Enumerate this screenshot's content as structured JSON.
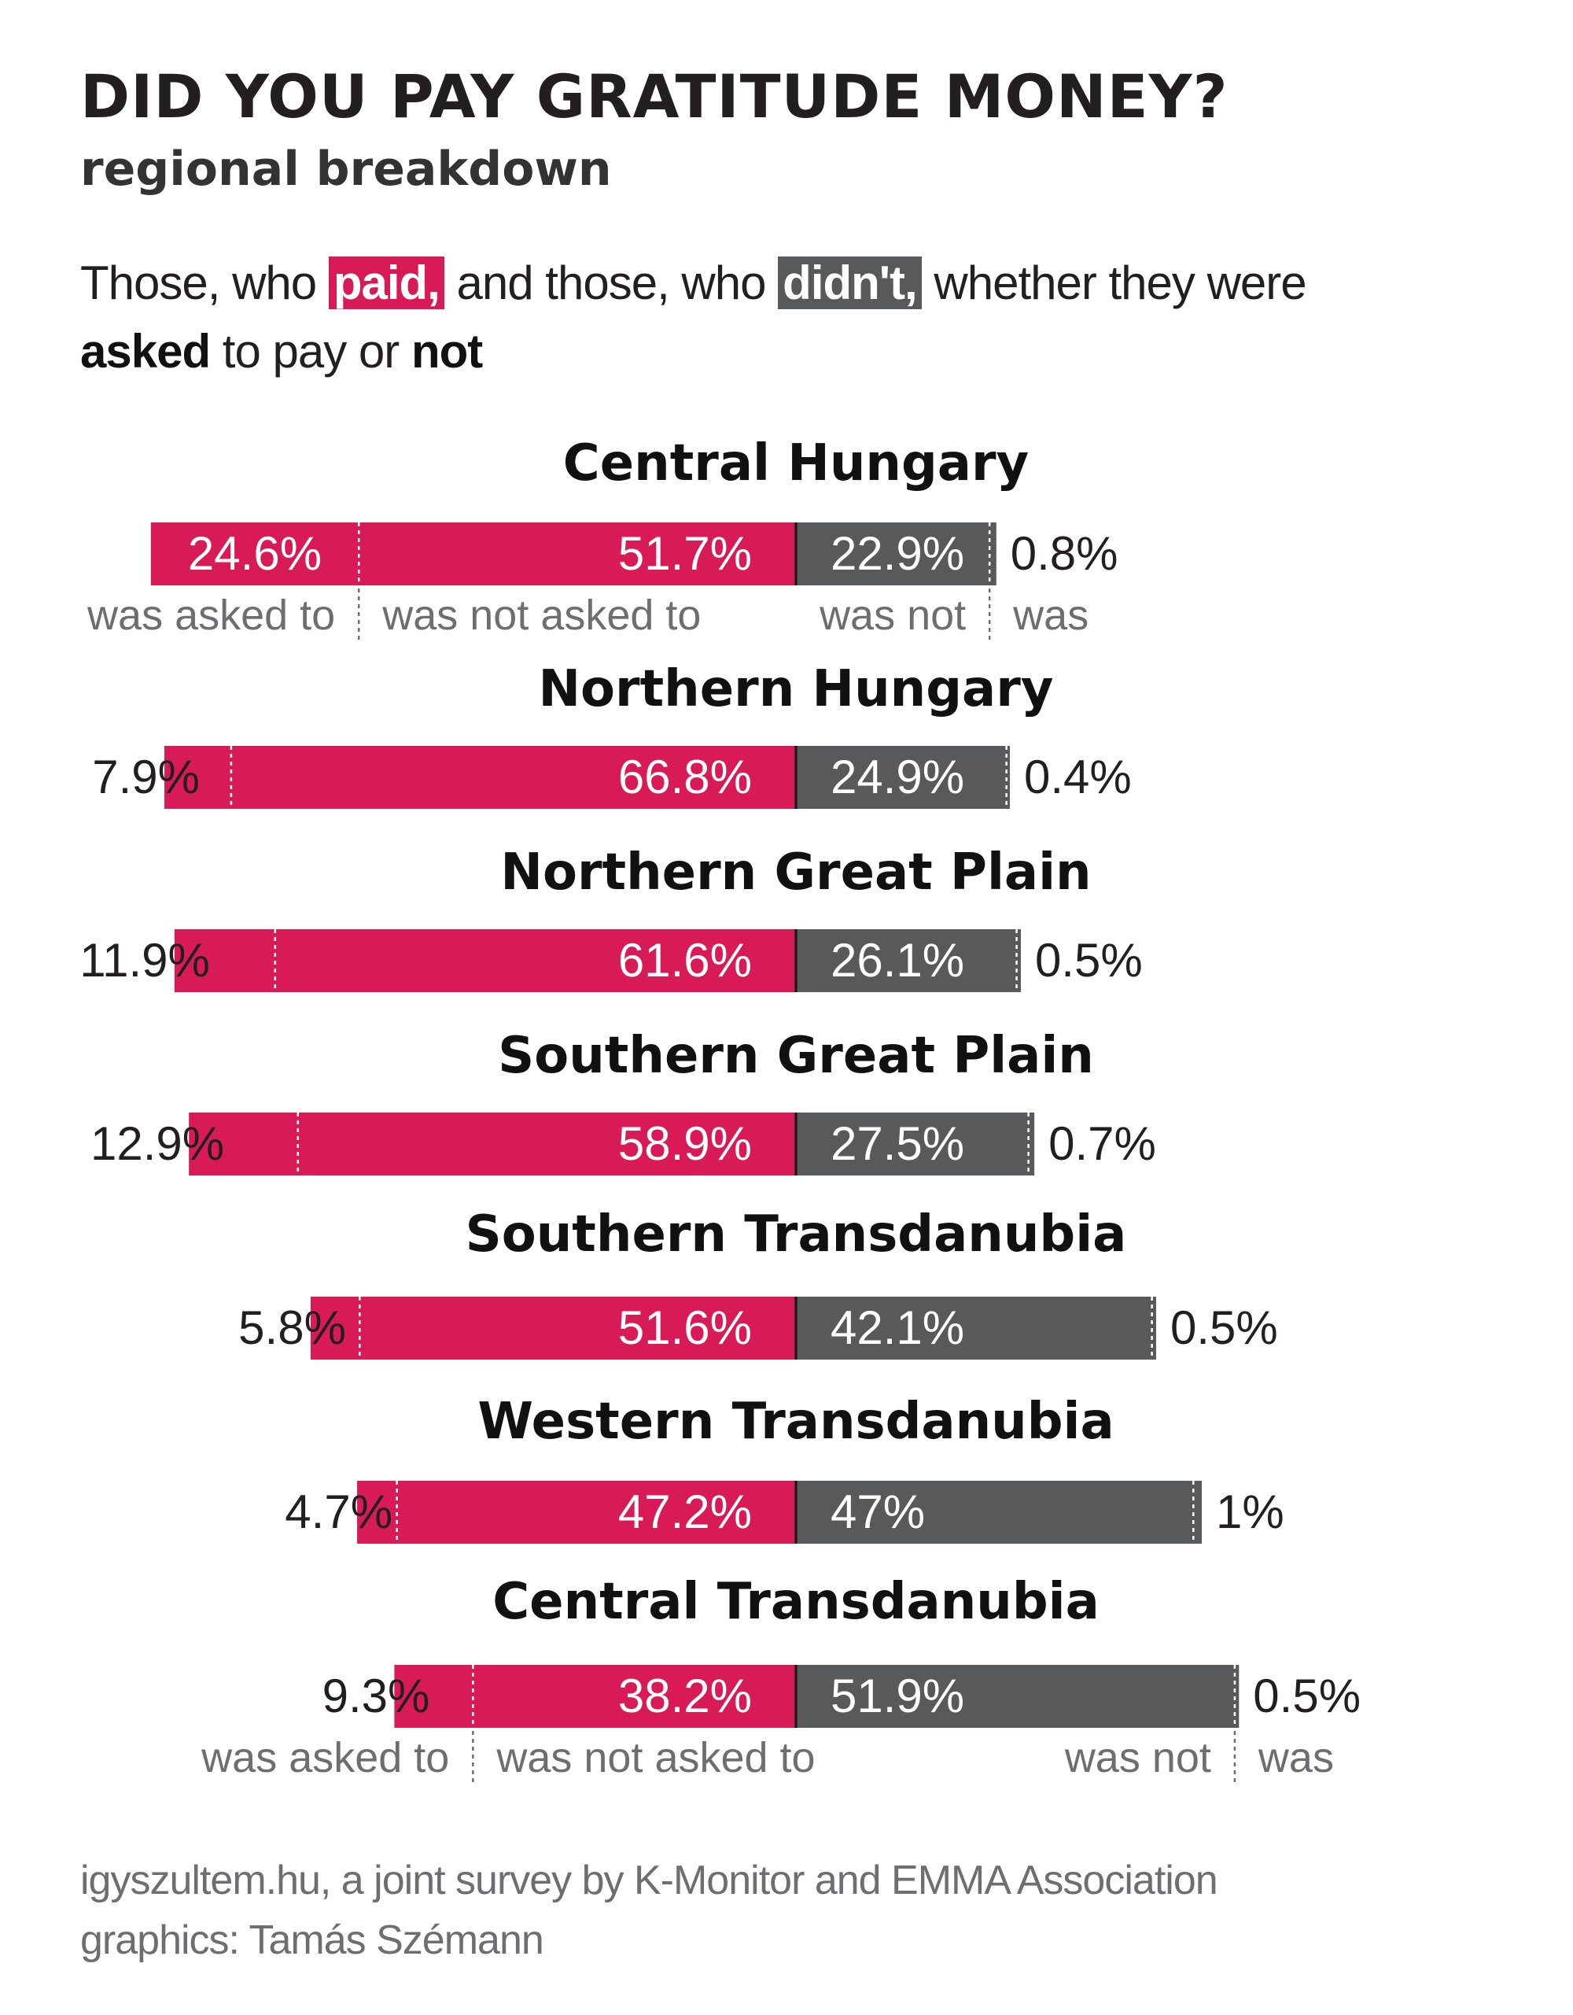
{
  "title": "DID YOU PAY GRATITUDE MONEY?",
  "subtitle": "regional breakdown",
  "intro": {
    "part1": "Those, who ",
    "paid": "paid,",
    "part2": " and those, who ",
    "didnt": "didn't,",
    "part3": " whether they were",
    "asked": "asked",
    "part4": " to pay or ",
    "not": "not"
  },
  "colors": {
    "paid": "#d81b56",
    "didnt": "#58595b",
    "text": "#231f20",
    "muted": "#6d6e71"
  },
  "chart_data": {
    "type": "bar",
    "orientation": "horizontal-stacked-diverging",
    "categories": [
      "Central Hungary",
      "Northern Hungary",
      "Northern Great Plain",
      "Southern Great Plain",
      "Southern Transdanubia",
      "Western Transdanubia",
      "Central Transdanubia"
    ],
    "series": [
      {
        "name": "paid — was asked to",
        "values": [
          24.6,
          7.9,
          11.9,
          12.9,
          5.8,
          4.7,
          9.3
        ],
        "labels": [
          "24.6%",
          "7.9%",
          "11.9%",
          "12.9%",
          "5.8%",
          "4.7%",
          "9.3%"
        ]
      },
      {
        "name": "paid — was not asked to",
        "values": [
          51.7,
          66.8,
          61.6,
          58.9,
          51.6,
          47.2,
          38.2
        ],
        "labels": [
          "51.7%",
          "66.8%",
          "61.6%",
          "58.9%",
          "51.6%",
          "47.2%",
          "38.2%"
        ]
      },
      {
        "name": "didn't — was not",
        "values": [
          22.9,
          24.9,
          26.1,
          27.5,
          42.1,
          47,
          51.9
        ],
        "labels": [
          "22.9%",
          "24.9%",
          "26.1%",
          "27.5%",
          "42.1%",
          "47%",
          "51.9%"
        ]
      },
      {
        "name": "didn't — was",
        "values": [
          0.8,
          0.4,
          0.5,
          0.7,
          0.5,
          1,
          0.5
        ],
        "labels": [
          "0.8%",
          "0.4%",
          "0.5%",
          "0.7%",
          "0.5%",
          "1%",
          "0.5%"
        ]
      }
    ],
    "segment_labels": {
      "paid_asked": "was asked to",
      "paid_not_asked": "was not asked to",
      "didnt_not": "was not",
      "didnt_was": "was"
    }
  },
  "source": {
    "line1": "igyszultem.hu, a joint survey by K-Monitor and EMMA Association",
    "line2": "graphics: Tamás Szémann"
  }
}
